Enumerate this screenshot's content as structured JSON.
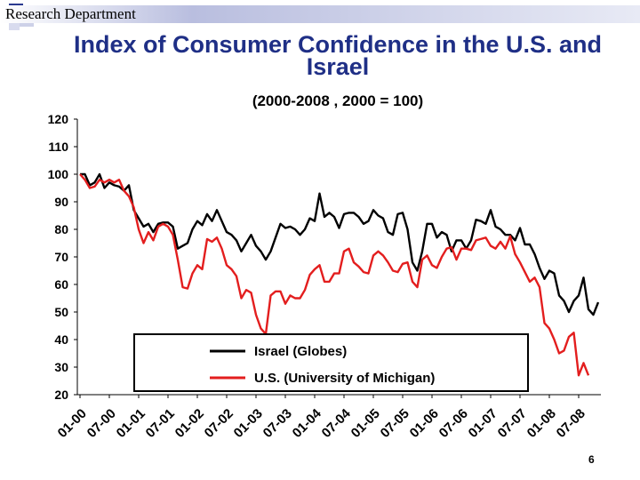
{
  "header": {
    "department": "Research Department",
    "title": "Index of Consumer Confidence in the U.S. and Israel",
    "subtitle": "(2000-2008 , 2000 = 100)",
    "page_number": "6"
  },
  "colors": {
    "israel": "#000000",
    "us": "#e31e1e",
    "title": "#1f2f86",
    "accent_square_dark": "#2b3a8f",
    "accent_square_light": "#c8cce6"
  },
  "chart_data": {
    "type": "line",
    "title": "Index of Consumer Confidence in the U.S. and Israel",
    "subtitle": "(2000-2008 , 2000 = 100)",
    "xlabel": "",
    "ylabel": "",
    "ylim": [
      20,
      120
    ],
    "yticks": [
      120,
      110,
      100,
      90,
      80,
      70,
      60,
      50,
      40,
      30,
      20
    ],
    "x_tick_labels": [
      "01-00",
      "07-00",
      "01-01",
      "07-01",
      "01-02",
      "07-02",
      "01-03",
      "07-03",
      "01-04",
      "07-04",
      "01-05",
      "07-05",
      "01-06",
      "07-06",
      "01-07",
      "07-07",
      "01-08",
      "07-08"
    ],
    "legend_position": "lower-right inside plot",
    "grid": false,
    "series": [
      {
        "name": "Israel (Globes)",
        "color": "#000000",
        "values": [
          100,
          100,
          96,
          97,
          100,
          95,
          97,
          96,
          95.5,
          94,
          96,
          87,
          84,
          81,
          82,
          79,
          82,
          82.5,
          82.5,
          81,
          73,
          74,
          75,
          80,
          83,
          81.5,
          85.5,
          83,
          87,
          83,
          79,
          78,
          76,
          72,
          75,
          78,
          74,
          72,
          69,
          72,
          77,
          82,
          80.5,
          81,
          80,
          78,
          80,
          84,
          83,
          93,
          84.5,
          86,
          84.5,
          80.5,
          85.5,
          86,
          86,
          84.5,
          82,
          83,
          87,
          85,
          84,
          79,
          78,
          85.5,
          86,
          80,
          68,
          65,
          72,
          82,
          82,
          77,
          79,
          78,
          72,
          76,
          76,
          73,
          76,
          83.5,
          83,
          82,
          87,
          81,
          80,
          78,
          78,
          76,
          80.5,
          74.5,
          74.5,
          71,
          66,
          62,
          65,
          64,
          56,
          54,
          50,
          54,
          56,
          62.5,
          51,
          49,
          53.5
        ]
      },
      {
        "name": "U.S. (University of Michigan)",
        "color": "#e31e1e",
        "values": [
          100,
          98,
          95,
          95.5,
          98,
          97,
          98,
          97,
          98,
          94,
          92,
          88,
          80,
          75,
          79,
          76,
          81,
          82,
          81,
          78,
          69,
          59,
          58.5,
          64,
          67,
          65.5,
          76.5,
          75.5,
          77,
          73,
          67,
          65.5,
          63,
          55,
          58,
          57,
          49,
          44,
          42,
          56,
          57.5,
          57.5,
          53,
          56,
          55,
          55,
          58,
          63.5,
          65.5,
          67,
          61,
          61,
          64,
          64,
          72,
          73,
          68,
          66.5,
          64.5,
          64,
          70.5,
          72,
          70.5,
          68,
          65,
          64.5,
          67.5,
          68,
          61,
          59,
          69,
          70.5,
          67,
          66,
          70,
          73,
          73.5,
          69,
          73,
          73,
          72.5,
          76,
          76.5,
          77,
          74,
          73,
          75.5,
          73,
          77.5,
          71,
          68,
          64.5,
          61,
          62.5,
          59,
          46,
          44,
          40,
          35,
          36,
          41,
          42.5,
          27,
          31.5,
          27
        ]
      }
    ]
  }
}
